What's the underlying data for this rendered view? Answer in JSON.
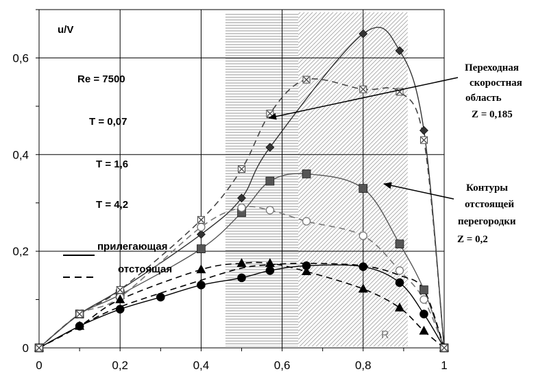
{
  "chart_data": {
    "type": "line",
    "xlim": [
      0,
      1
    ],
    "ylim": [
      0,
      0.7
    ],
    "x_ticks": [
      "0",
      "0,2",
      "0,4",
      "0,6",
      "0,8",
      "1"
    ],
    "y_ticks": [
      "0",
      "0,2",
      "0,4",
      "0,6"
    ],
    "ylabel": "u/V",
    "grid": true,
    "params": [
      "Re = 7500",
      "T = 0,07",
      "T = 1,6",
      "T = 4,2"
    ],
    "legend": {
      "solid_label": "прилегающая",
      "dashed_label": "отстоящая"
    },
    "regions": [
      {
        "type": "horizontal-hatch",
        "x": [
          0.46,
          0.64
        ]
      },
      {
        "type": "diagonal-hatch",
        "x": [
          0.64,
          0.91
        ],
        "label": "R"
      }
    ],
    "annotations": {
      "upper": {
        "lines": [
          "Переходная",
          "скоростная",
          "область",
          "Z = 0,185"
        ],
        "target": [
          0.55,
          0.48
        ]
      },
      "lower": {
        "lines": [
          "Контуры",
          "отстоящей",
          "перегородки",
          "Z = 0,2"
        ],
        "target": [
          0.86,
          0.335
        ]
      }
    },
    "series": [
      {
        "style": "solid",
        "marker": "diamond",
        "color": "#333333",
        "x": [
          0,
          0.1,
          0.2,
          0.4,
          0.5,
          0.57,
          0.8,
          0.89,
          0.95,
          1
        ],
        "y": [
          0,
          0.07,
          0.12,
          0.235,
          0.31,
          0.415,
          0.65,
          0.615,
          0.45,
          0
        ]
      },
      {
        "style": "solid",
        "marker": "square",
        "color": "#555555",
        "x": [
          0,
          0.1,
          0.2,
          0.4,
          0.5,
          0.57,
          0.66,
          0.8,
          0.89,
          0.95,
          1
        ],
        "y": [
          0,
          0.07,
          0.11,
          0.205,
          0.28,
          0.345,
          0.36,
          0.33,
          0.215,
          0.12,
          0
        ]
      },
      {
        "style": "solid",
        "marker": "circle",
        "color": "#000000",
        "x": [
          0,
          0.1,
          0.2,
          0.3,
          0.4,
          0.5,
          0.57,
          0.66,
          0.8,
          0.89,
          0.95,
          1
        ],
        "y": [
          0,
          0.045,
          0.08,
          0.105,
          0.13,
          0.145,
          0.16,
          0.17,
          0.168,
          0.135,
          0.07,
          0
        ]
      },
      {
        "style": "dashed",
        "marker": "open-circle",
        "color": "#777777",
        "x": [
          0,
          0.1,
          0.2,
          0.4,
          0.5,
          0.57,
          0.66,
          0.8,
          0.89,
          0.95,
          1
        ],
        "y": [
          0,
          0.07,
          0.105,
          0.25,
          0.29,
          0.285,
          0.262,
          0.232,
          0.16,
          0.1,
          0
        ]
      },
      {
        "style": "dashed",
        "marker": "triangle",
        "color": "#000000",
        "x": [
          0,
          0.1,
          0.2,
          0.4,
          0.5,
          0.57,
          0.66,
          0.8,
          0.89,
          0.95,
          1
        ],
        "y": [
          0,
          0.045,
          0.1,
          0.162,
          0.175,
          0.175,
          0.158,
          0.122,
          0.083,
          0.035,
          0
        ]
      },
      {
        "style": "dashed",
        "marker": "cross",
        "color": "#444444",
        "x": [
          0,
          0.1,
          0.2,
          0.4,
          0.5,
          0.57,
          0.66,
          0.8,
          0.89,
          0.95,
          1
        ],
        "y": [
          0,
          0.07,
          0.12,
          0.265,
          0.37,
          0.485,
          0.555,
          0.535,
          0.53,
          0.43,
          0
        ]
      },
      {
        "style": "dashed",
        "marker": "none",
        "color": "#000000",
        "x": [
          0,
          0.1,
          0.2,
          0.4,
          0.5,
          0.57,
          0.66,
          0.8,
          0.89,
          0.95,
          1
        ],
        "y": [
          0,
          0.045,
          0.085,
          0.14,
          0.165,
          0.172,
          0.175,
          0.17,
          0.15,
          0.12,
          0
        ]
      }
    ]
  }
}
